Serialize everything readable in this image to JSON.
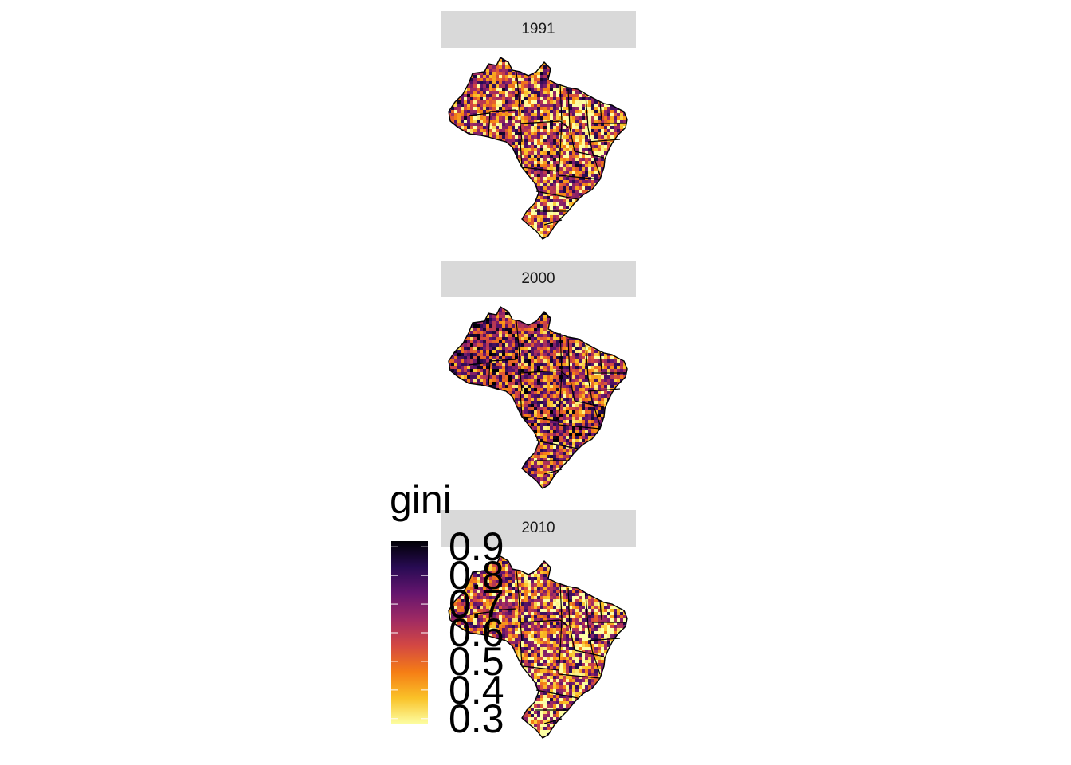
{
  "facets": [
    {
      "label": "1991",
      "palette": [
        [
          0.48,
          0.38
        ],
        [
          0.55,
          0.34
        ],
        [
          0.6,
          0.2
        ],
        [
          0.65,
          0.06
        ],
        [
          0.42,
          0.02
        ]
      ]
    },
    {
      "label": "2000",
      "palette": [
        [
          0.55,
          0.3
        ],
        [
          0.62,
          0.32
        ],
        [
          0.7,
          0.22
        ],
        [
          0.78,
          0.1
        ],
        [
          0.5,
          0.06
        ]
      ]
    },
    {
      "label": "2010",
      "palette": [
        [
          0.45,
          0.4
        ],
        [
          0.52,
          0.32
        ],
        [
          0.6,
          0.18
        ],
        [
          0.68,
          0.07
        ],
        [
          0.38,
          0.03
        ]
      ]
    }
  ],
  "legend": {
    "title": "gini",
    "min": 0.28,
    "max": 0.92,
    "labels": [
      "0.9",
      "0.8",
      "0.7",
      "0.6",
      "0.5",
      "0.4",
      "0.3"
    ],
    "label_values": [
      0.9,
      0.8,
      0.7,
      0.6,
      0.5,
      0.4,
      0.3
    ],
    "colormap": "inferno",
    "colors": [
      "#fcffa4",
      "#fac228",
      "#f57d15",
      "#d44842",
      "#9f2a63",
      "#65156e",
      "#280b53",
      "#000004"
    ]
  }
}
